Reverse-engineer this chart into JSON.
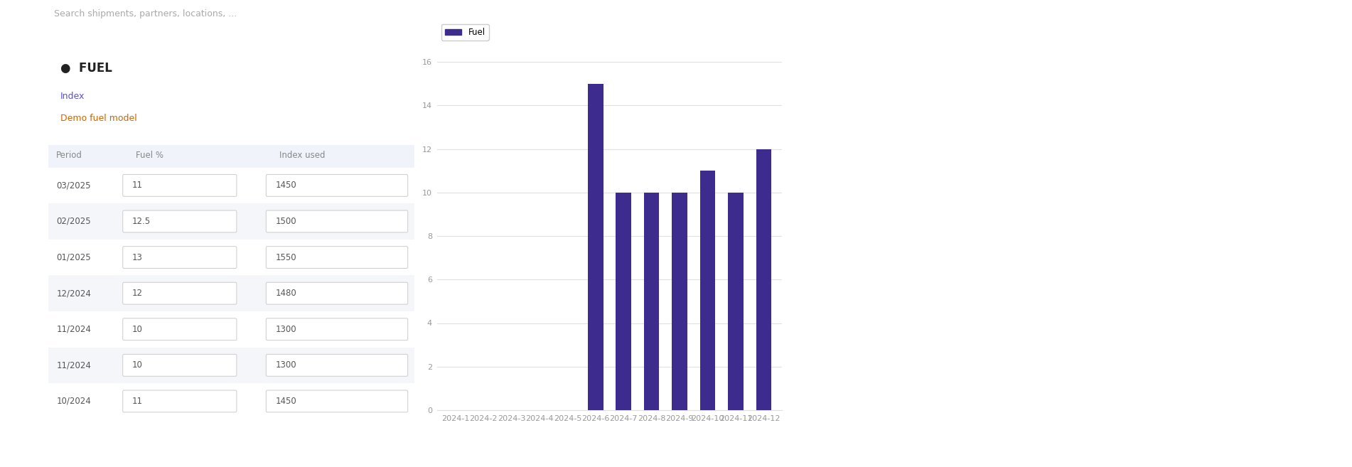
{
  "categories": [
    "2024-1",
    "2024-2",
    "2024-3",
    "2024-4",
    "2024-5",
    "2024-6",
    "2024-7",
    "2024-8",
    "2024-9",
    "2024-10",
    "2024-11",
    "2024-12"
  ],
  "values": [
    0,
    0,
    0,
    0,
    0,
    15,
    10,
    10,
    10,
    11,
    10,
    12
  ],
  "bar_color": "#3d2b8e",
  "legend_label": "Fuel",
  "ylim": [
    0,
    16
  ],
  "yticks": [
    0,
    2,
    4,
    6,
    8,
    10,
    12,
    14,
    16
  ],
  "background_color": "#ffffff",
  "grid_color": "#e0e0e0",
  "tick_color": "#999999",
  "sidebar_color": "#3d2b8e",
  "sidebar_icon_color": "#ffffff",
  "nav_bg": "#ffffff",
  "panel_bg": "#ffffff",
  "header_bg": "#f0f3fa",
  "row_alt_bg": "#f5f6fa",
  "title_color": "#222222",
  "index_link_color": "#5b4fcf",
  "model_name_color": "#cc6600",
  "period_color": "#555555",
  "col_header_color": "#888888",
  "value_color": "#555555",
  "box_border": "#cccccc",
  "divider_color": "#e8e8e8",
  "rows": [
    [
      "03/2025",
      "11",
      "1450",
      false
    ],
    [
      "02/2025",
      "12.5",
      "1500",
      true
    ],
    [
      "01/2025",
      "13",
      "1550",
      false
    ],
    [
      "12/2024",
      "12",
      "1480",
      true
    ],
    [
      "11/2024",
      "10",
      "1300",
      false
    ],
    [
      "11/2024",
      "10",
      "1300",
      true
    ],
    [
      "10/2024",
      "11",
      "1450",
      false
    ]
  ]
}
